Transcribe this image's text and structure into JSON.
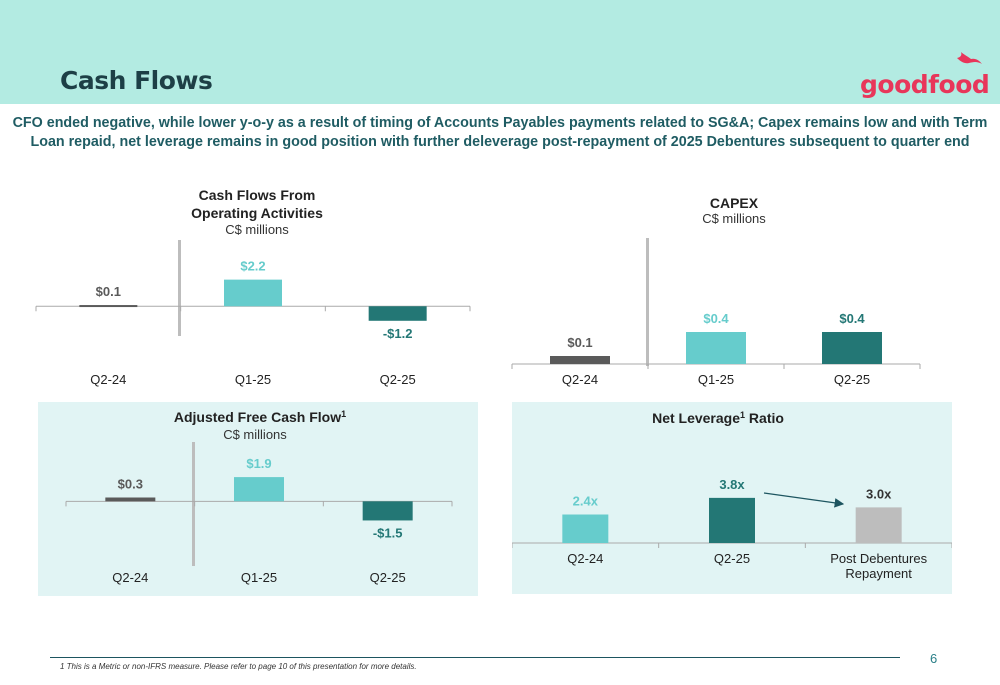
{
  "header": {
    "title": "Cash Flows",
    "logo_text": "goodfood",
    "subtitle": "CFO ended negative, while lower y-o-y as a result of timing of Accounts Payables payments related to SG&A; Capex remains low and with Term Loan repaid, net leverage remains in good position with further deleverage post-repayment of 2025 Debentures subsequent to quarter end"
  },
  "colors": {
    "dark_gray": "#5a5a5a",
    "light_teal": "#66cccc",
    "dark_teal": "#237775",
    "light_gray": "#bdbdbd",
    "panel_bg": "#e1f4f4",
    "header_bg": "#b3ebe2",
    "title_color": "#1d3f46",
    "logo_color": "#e8365a"
  },
  "chart_data": [
    {
      "id": "cfo",
      "type": "bar",
      "title_lines": [
        "Cash Flows From",
        "Operating Activities"
      ],
      "unit_label": "C$ millions",
      "categories": [
        "Q2-24",
        "Q1-25",
        "Q2-25"
      ],
      "values": [
        0.1,
        2.2,
        -1.2
      ],
      "labels": [
        "$0.1",
        "$2.2",
        "-$1.2"
      ],
      "colors": [
        "#5a5a5a",
        "#66cccc",
        "#237775"
      ],
      "ylim": [
        -1.3,
        2.5
      ]
    },
    {
      "id": "capex",
      "type": "bar",
      "title_lines": [
        "CAPEX"
      ],
      "unit_label": "C$ millions",
      "categories": [
        "Q2-24",
        "Q1-25",
        "Q2-25"
      ],
      "values": [
        0.1,
        0.4,
        0.4
      ],
      "labels": [
        "$0.1",
        "$0.4",
        "$0.4"
      ],
      "colors": [
        "#5a5a5a",
        "#66cccc",
        "#237775"
      ],
      "ylim": [
        0,
        0.5
      ]
    },
    {
      "id": "afcf",
      "type": "bar",
      "title": "Adjusted Free Cash Flow",
      "title_sup": "1",
      "unit_label": "C$ millions",
      "categories": [
        "Q2-24",
        "Q1-25",
        "Q2-25"
      ],
      "values": [
        0.3,
        1.9,
        -1.5
      ],
      "labels": [
        "$0.3",
        "$1.9",
        "-$1.5"
      ],
      "colors": [
        "#5a5a5a",
        "#66cccc",
        "#237775"
      ],
      "ylim": [
        -1.7,
        2.3
      ]
    },
    {
      "id": "leverage",
      "type": "bar",
      "title_pre": "Net Leverage",
      "title_sup": "1",
      "title_post": " Ratio",
      "categories": [
        [
          "Q2-24"
        ],
        [
          "Q2-25"
        ],
        [
          "Post Debentures",
          "Repayment"
        ]
      ],
      "values": [
        2.4,
        3.8,
        3.0
      ],
      "labels": [
        "2.4x",
        "3.8x",
        "3.0x"
      ],
      "colors": [
        "#66cccc",
        "#237775",
        "#bdbdbd"
      ],
      "ylim": [
        0,
        4.8
      ]
    }
  ],
  "footer": {
    "footnote": "1   This is a Metric or non-IFRS measure. Please refer to page 10 of this presentation for more details.",
    "page_number": "6"
  }
}
